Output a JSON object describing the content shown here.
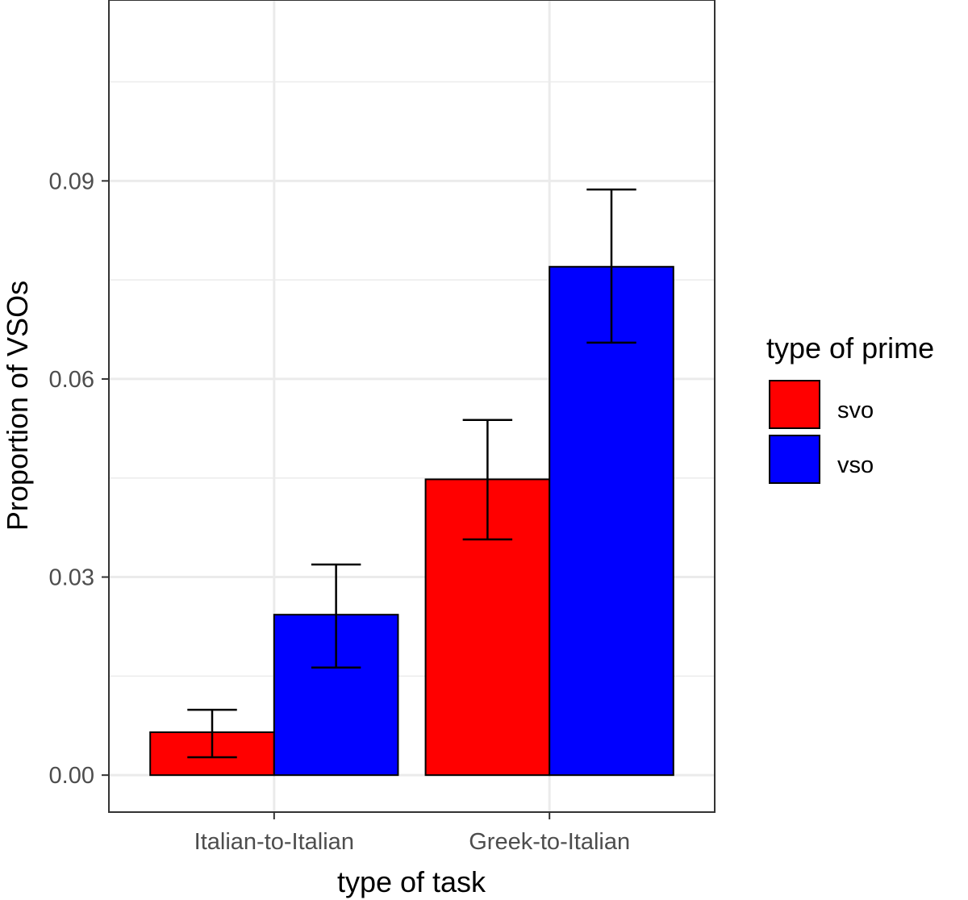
{
  "chart_data": {
    "type": "bar",
    "xlabel": "type of task",
    "ylabel": "Proportion of VSOs",
    "categories": [
      "Italian-to-Italian",
      "Greek-to-Italian"
    ],
    "series": [
      {
        "name": "svo",
        "color": "#ff0000",
        "values": [
          0.0065,
          0.0448
        ],
        "error_low": [
          0.0027,
          0.0357
        ],
        "error_high": [
          0.0099,
          0.0538
        ]
      },
      {
        "name": "vso",
        "color": "#0000ff",
        "values": [
          0.0243,
          0.077
        ],
        "error_low": [
          0.0163,
          0.0655
        ],
        "error_high": [
          0.0319,
          0.0887
        ]
      }
    ],
    "yticks": [
      0.0,
      0.03,
      0.06,
      0.09
    ],
    "ytick_labels": [
      "0.00",
      "0.03",
      "0.06",
      "0.09"
    ],
    "ylim": [
      -0.0056,
      0.1174
    ],
    "legend": {
      "title": "type of prime",
      "position": "right"
    },
    "grid": true
  }
}
